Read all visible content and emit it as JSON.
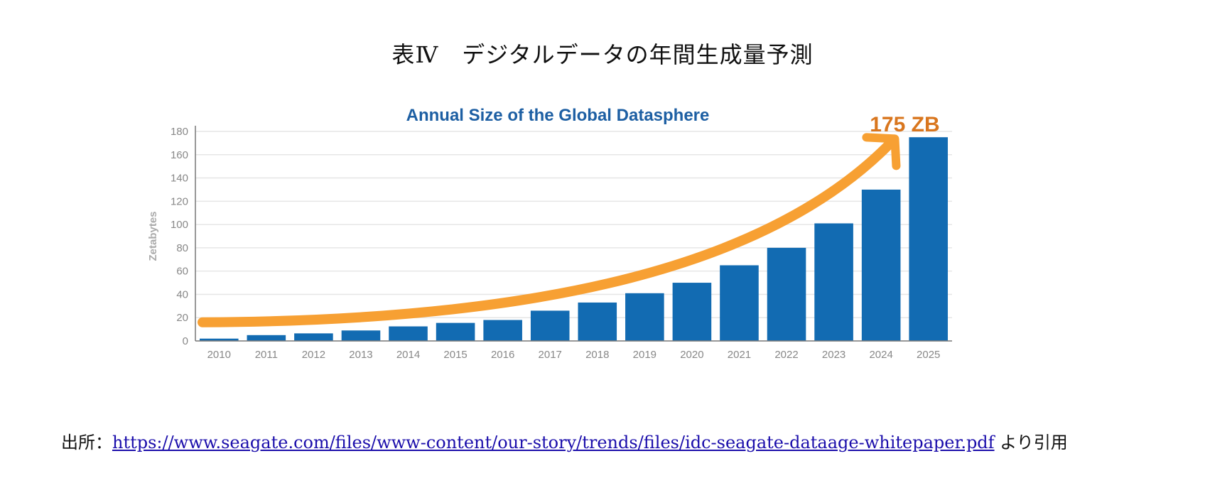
{
  "page": {
    "title": "表Ⅳ　デジタルデータの年間生成量予測",
    "source_prefix": "出所：",
    "source_url": "https://www.seagate.com/files/www-content/our-story/trends/files/idc-seagate-dataage-whitepaper.pdf",
    "source_suffix": " より引用"
  },
  "chart_data": {
    "type": "bar",
    "title": "Annual Size of the Global Datasphere",
    "ylabel": "Zetabytes",
    "xlabel": "",
    "categories": [
      "2010",
      "2011",
      "2012",
      "2013",
      "2014",
      "2015",
      "2016",
      "2017",
      "2018",
      "2019",
      "2020",
      "2021",
      "2022",
      "2023",
      "2024",
      "2025"
    ],
    "values": [
      2,
      5,
      6.5,
      9,
      12.5,
      15.5,
      18,
      26,
      33,
      41,
      50,
      65,
      80,
      101,
      130,
      175
    ],
    "ylim": [
      0,
      180
    ],
    "yticks": [
      0,
      20,
      40,
      60,
      80,
      100,
      120,
      140,
      160,
      180
    ],
    "annotation": "175 ZB",
    "grid": true,
    "colors": {
      "bar": "#126bb2",
      "title": "#1d5fa3",
      "arrow": "#f7a033",
      "annotation": "#d9761e",
      "tick": "#888888",
      "grid": "#e6e6e6"
    }
  }
}
